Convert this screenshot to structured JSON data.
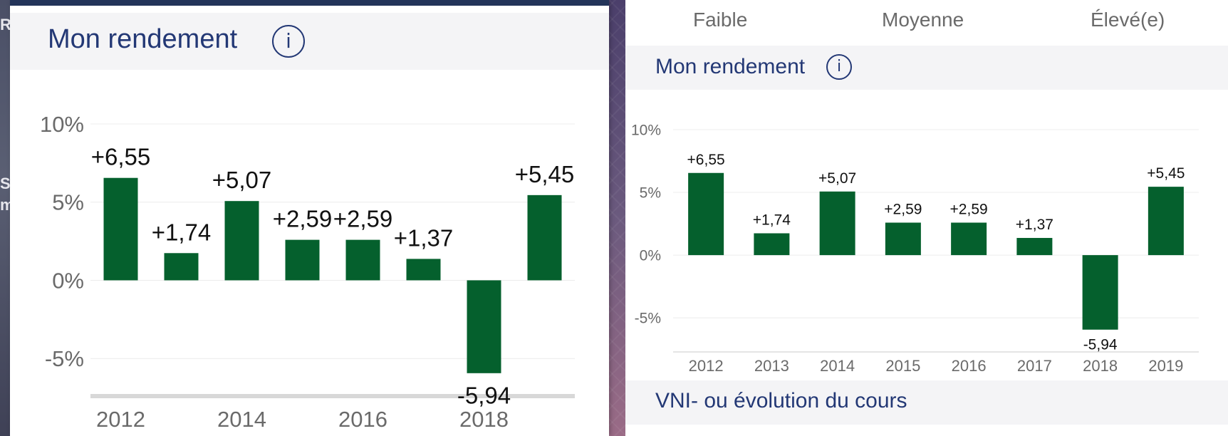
{
  "colors": {
    "bar": "#05602d",
    "title": "#233875",
    "axis_text": "#6a6a6a",
    "header_bg": "#f4f4f6"
  },
  "left_panel": {
    "edge_fragments": [
      "R",
      "S",
      "m"
    ],
    "title": "Mon rendement",
    "info_icon": "i"
  },
  "right_panel": {
    "risk_levels": [
      "Faible",
      "Moyenne",
      "Élevé(e)"
    ],
    "title": "Mon rendement",
    "info_icon": "i",
    "next_section_title": "VNI- ou évolution du cours"
  },
  "chart_data": [
    {
      "type": "bar",
      "categories": [
        "2012",
        "2013",
        "2014",
        "2015",
        "2016",
        "2017",
        "2018",
        "2019"
      ],
      "values": [
        6.55,
        1.74,
        5.07,
        2.59,
        2.59,
        1.37,
        -5.94,
        5.45
      ],
      "value_labels": [
        "+6,55",
        "+1,74",
        "+5,07",
        "+2,59",
        "+2,59",
        "+1,37",
        "-5,94",
        "+5,45"
      ],
      "x_tick_labels": [
        "2012",
        "2014",
        "2016",
        "2018"
      ],
      "y_ticks": [
        10,
        5,
        0,
        -5
      ],
      "y_tick_labels": [
        "10%",
        "5%",
        "0%",
        "-5%"
      ],
      "ylim": [
        -8.5,
        10
      ],
      "grid": true,
      "title": "Mon rendement"
    },
    {
      "type": "bar",
      "categories": [
        "2012",
        "2013",
        "2014",
        "2015",
        "2016",
        "2017",
        "2018",
        "2019"
      ],
      "values": [
        6.55,
        1.74,
        5.07,
        2.59,
        2.59,
        1.37,
        -5.94,
        5.45
      ],
      "value_labels": [
        "+6,55",
        "+1,74",
        "+5,07",
        "+2,59",
        "+2,59",
        "+1,37",
        "-5,94",
        "+5,45"
      ],
      "x_tick_labels": [
        "2012",
        "2013",
        "2014",
        "2015",
        "2016",
        "2017",
        "2018",
        "2019"
      ],
      "y_ticks": [
        10,
        5,
        0,
        -5
      ],
      "y_tick_labels": [
        "10%",
        "5%",
        "0%",
        "-5%"
      ],
      "ylim": [
        -8,
        10
      ],
      "grid": true,
      "title": "Mon rendement"
    }
  ]
}
